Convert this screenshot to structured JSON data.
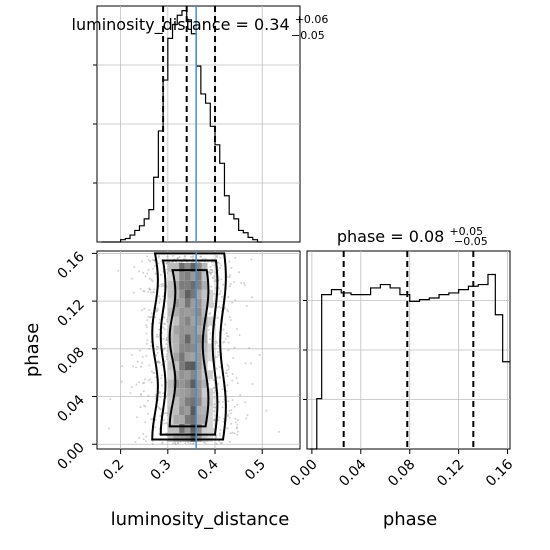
{
  "chart_data": [
    {
      "type": "histogram",
      "panel": "luminosity_distance-1d",
      "title": {
        "main": "luminosity_distance = 0.34",
        "sup": "+0.06",
        "sub": "−0.05"
      },
      "x": [
        0.16,
        0.17,
        0.18,
        0.19,
        0.2,
        0.21,
        0.22,
        0.23,
        0.24,
        0.25,
        0.26,
        0.27,
        0.28,
        0.29,
        0.3,
        0.31,
        0.32,
        0.33,
        0.34,
        0.35,
        0.36,
        0.37,
        0.38,
        0.39,
        0.4,
        0.41,
        0.42,
        0.43,
        0.44,
        0.45,
        0.46,
        0.47,
        0.48,
        0.49
      ],
      "values": [
        0,
        0,
        0,
        0,
        1,
        1.5,
        3,
        5,
        7,
        10,
        14,
        28,
        48,
        70,
        88,
        94,
        98,
        100,
        96,
        90,
        76,
        64,
        60,
        50,
        42,
        34,
        20,
        12,
        10,
        5,
        4,
        2,
        1,
        0
      ],
      "xlim": [
        0.15,
        0.58
      ],
      "ylim": [
        0,
        102
      ],
      "quantiles": [
        0.29,
        0.34,
        0.4
      ],
      "truth": 0.36,
      "grid": true
    },
    {
      "type": "histogram",
      "panel": "phase-1d",
      "title": {
        "main": "phase = 0.08",
        "sup": "+0.05",
        "sub": "−0.05"
      },
      "x": [
        -0.002,
        0.004,
        0.008,
        0.016,
        0.024,
        0.032,
        0.04,
        0.048,
        0.056,
        0.064,
        0.072,
        0.08,
        0.088,
        0.096,
        0.104,
        0.112,
        0.12,
        0.128,
        0.136,
        0.144,
        0.15,
        0.156
      ],
      "values": [
        0,
        30,
        92,
        95,
        93,
        92,
        92,
        96,
        98,
        96,
        92,
        88,
        89,
        90,
        92,
        93,
        95,
        97,
        98,
        104,
        80,
        52
      ],
      "xlim": [
        -0.004,
        0.162
      ],
      "ylim": [
        0,
        118
      ],
      "quantiles": [
        0.026,
        0.078,
        0.132
      ],
      "grid": true
    },
    {
      "type": "scatter",
      "panel": "luminosity_distance-vs-phase-2d",
      "xlabel": "luminosity_distance",
      "ylabel": "phase",
      "xlim": [
        0.15,
        0.58
      ],
      "ylim": [
        -0.004,
        0.162
      ],
      "truth": {
        "x": 0.36,
        "y": null
      },
      "grid": true,
      "note": "2D posterior samples with density contours"
    }
  ],
  "axes": {
    "dist_ticks": [
      "0.2",
      "0.3",
      "0.4",
      "0.5"
    ],
    "phase_ticks": [
      "0.00",
      "0.04",
      "0.08",
      "0.12",
      "0.16"
    ]
  },
  "colors": {
    "truth": "#4a8fc0",
    "line": "#000000",
    "grid": "#bfbfbf"
  }
}
